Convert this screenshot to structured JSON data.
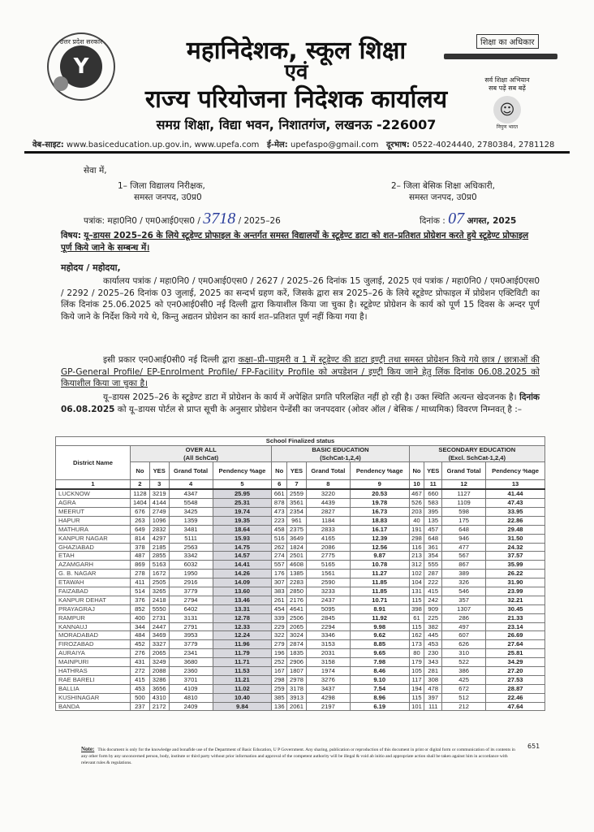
{
  "header": {
    "seal_text": "उत्तर प्रदेश सरकार",
    "title_line1": "महानिदेशक, स्कूल शिक्षा",
    "title_line2": "एवं",
    "title_line3": "राज्य परियोजना निदेशक कार्यालय",
    "address": "समग्र शिक्षा, विद्या भवन, निशातगंज, लखनऊ -226007",
    "rte_label": "शिक्षा का अधिकार",
    "ssa_line1": "सर्व शिक्षा अभियान",
    "ssa_line2": "सब पढ़ें सब बढ़ें",
    "nipun_label": "निपुण भारत",
    "website_label": "वेब-साइट:",
    "website": "www.basiceducation.up.gov.in, www.upefa.com",
    "email_label": "ई-मेल:",
    "email": "upefaspo@gmail.com",
    "phone_label": "दूरभाष:",
    "phone": "0522-4024440, 2780384, 2781128"
  },
  "letter": {
    "to": "सेवा में,",
    "recipient1_line1": "1– जिला विद्यालय निरीक्षक,",
    "recipient1_line2": "समस्त जनपद, उ0प्र0",
    "recipient2_line1": "2– जिला बेसिक शिक्षा अधिकारी,",
    "recipient2_line2": "समस्त जनपद, उ0प्र0",
    "ref_prefix": "पत्रांक: महा0नि0 / एम0आई0एस0 /",
    "ref_number_handwritten": "3718",
    "ref_suffix": "/ 2025–26",
    "date_label": "दिनांक :",
    "date_handwritten": "07",
    "date_suffix": "अगस्त, 2025",
    "subject_label": "विषय:",
    "subject": "यू–डायस 2025–26 के लिये स्टूडेण्ट प्रोफाइल के अन्तर्गत समस्त विद्यालयों के स्टूडेण्ट डाटा को शत–प्रतिशत प्रोग्रेशन करते हुये स्टूडेण्ट प्रोफाइल पूर्ण किये जाने के सम्बन्ध में।",
    "salutation": "महोदय / महोदया,",
    "para1": "कार्यालय पत्रांक / महा0नि0 / एम0आई0एस0 / 2627 / 2025–26 दिनांक 15 जुलाई, 2025 एवं पत्रांक / महा0नि0 / एम0आई0एस0 / 2292 / 2025–26 दिनांक 03 जुलाई, 2025 का सन्दर्भ ग्रहण करें, जिसके द्वारा सत्र 2025–26 के लिये स्टूडेण्ट प्रोफाइल में प्रोग्रेशन एक्टिविटी का लिंक दिनांक 25.06.2025 को एन0आई0सी0 नई दिल्ली द्वारा कियाशील किया जा चुका है। स्टूडेण्ट प्रोग्रेशन के कार्य को पूर्ण 15 दिवस के अन्दर पूर्ण किये जाने के निर्देश किये गये थे, किन्तु अद्यतन प्रोग्रेशन का कार्य शत–प्रतिशत पूर्ण नहीं किया गया है।",
    "para2_plain": "इसी प्रकार एन0आई0सी0 नई दिल्ली द्वारा ",
    "para2_underlined": "कक्षा–प्री–पाइमरी व 1 में स्टूडेण्ट की डाटा इण्ट्री तथा समस्त प्रोग्रेशन किये गये छात्र / छात्राओं की GP-General Profile/ EP-Enrolment Profile/ FP-Facility Profile को अपडेशन / इण्ट्री किय जाने हेतु लिंक दिनांक 06.08.2025 को कियाशील किया जा चुका है।",
    "para3_a": "यू–डायस 2025–26 के स्टूडेण्ट डाटा में प्रोग्रेशन के कार्य में अपेक्षित प्रगति परिलक्षित नहीं हो रही है। उक्त स्थिति अत्यन्त खेदजनक है। ",
    "para3_bold": "दिनांक 06.08.2025",
    "para3_b": " को यू–डायस पोर्टल से प्राप्त सूची के अनुसार प्रोग्रेशन पेन्डेंसी का जनपदवार (ओवर ऑल / बेसिक / माध्यमिक) विवरण निम्नवत् है :–"
  },
  "table": {
    "title": "School Finalized status",
    "district_header": "District Name",
    "groups": [
      {
        "line1": "OVER ALL",
        "line2": "(All SchCat)"
      },
      {
        "line1": "BASIC EDUCATION",
        "line2": "(SchCat-1,2,4)"
      },
      {
        "line1": "SECONDARY EDUCATION",
        "line2": "(Excl. SchCat-1,2,4)"
      }
    ],
    "sub_headers": [
      "No",
      "YES",
      "Grand Total",
      "Pendency %age"
    ],
    "col_numbers": [
      "1",
      "2",
      "3",
      "4",
      "5",
      "6",
      "7",
      "8",
      "9",
      "10",
      "11",
      "12",
      "13"
    ],
    "rows": [
      [
        "LUCKNOW",
        "1128",
        "3219",
        "4347",
        "25.95",
        "661",
        "2559",
        "3220",
        "20.53",
        "467",
        "660",
        "1127",
        "41.44"
      ],
      [
        "AGRA",
        "1404",
        "4144",
        "5548",
        "25.31",
        "878",
        "3561",
        "4439",
        "19.78",
        "526",
        "583",
        "1109",
        "47.43"
      ],
      [
        "MEERUT",
        "676",
        "2749",
        "3425",
        "19.74",
        "473",
        "2354",
        "2827",
        "16.73",
        "203",
        "395",
        "598",
        "33.95"
      ],
      [
        "HAPUR",
        "263",
        "1096",
        "1359",
        "19.35",
        "223",
        "961",
        "1184",
        "18.83",
        "40",
        "135",
        "175",
        "22.86"
      ],
      [
        "MATHURA",
        "649",
        "2832",
        "3481",
        "18.64",
        "458",
        "2375",
        "2833",
        "16.17",
        "191",
        "457",
        "648",
        "29.48"
      ],
      [
        "KANPUR NAGAR",
        "814",
        "4297",
        "5111",
        "15.93",
        "516",
        "3649",
        "4165",
        "12.39",
        "298",
        "648",
        "946",
        "31.50"
      ],
      [
        "GHAZIABAD",
        "378",
        "2185",
        "2563",
        "14.75",
        "262",
        "1824",
        "2086",
        "12.56",
        "116",
        "361",
        "477",
        "24.32"
      ],
      [
        "ETAH",
        "487",
        "2855",
        "3342",
        "14.57",
        "274",
        "2501",
        "2775",
        "9.87",
        "213",
        "354",
        "567",
        "37.57"
      ],
      [
        "AZAMGARH",
        "869",
        "5163",
        "6032",
        "14.41",
        "557",
        "4608",
        "5165",
        "10.78",
        "312",
        "555",
        "867",
        "35.99"
      ],
      [
        "G. B. NAGAR",
        "278",
        "1672",
        "1950",
        "14.26",
        "176",
        "1385",
        "1561",
        "11.27",
        "102",
        "287",
        "389",
        "26.22"
      ],
      [
        "ETAWAH",
        "411",
        "2505",
        "2916",
        "14.09",
        "307",
        "2283",
        "2590",
        "11.85",
        "104",
        "222",
        "326",
        "31.90"
      ],
      [
        "FAIZABAD",
        "514",
        "3265",
        "3779",
        "13.60",
        "383",
        "2850",
        "3233",
        "11.85",
        "131",
        "415",
        "546",
        "23.99"
      ],
      [
        "KANPUR DEHAT",
        "376",
        "2418",
        "2794",
        "13.46",
        "261",
        "2176",
        "2437",
        "10.71",
        "115",
        "242",
        "357",
        "32.21"
      ],
      [
        "PRAYAGRAJ",
        "852",
        "5550",
        "6402",
        "13.31",
        "454",
        "4641",
        "5095",
        "8.91",
        "398",
        "909",
        "1307",
        "30.45"
      ],
      [
        "RAMPUR",
        "400",
        "2731",
        "3131",
        "12.78",
        "339",
        "2506",
        "2845",
        "11.92",
        "61",
        "225",
        "286",
        "21.33"
      ],
      [
        "KANNAUJ",
        "344",
        "2447",
        "2791",
        "12.33",
        "229",
        "2065",
        "2294",
        "9.98",
        "115",
        "382",
        "497",
        "23.14"
      ],
      [
        "MORADABAD",
        "484",
        "3469",
        "3953",
        "12.24",
        "322",
        "3024",
        "3346",
        "9.62",
        "162",
        "445",
        "607",
        "26.69"
      ],
      [
        "FIROZABAD",
        "452",
        "3327",
        "3779",
        "11.96",
        "279",
        "2874",
        "3153",
        "8.85",
        "173",
        "453",
        "626",
        "27.64"
      ],
      [
        "AURAIYA",
        "276",
        "2065",
        "2341",
        "11.79",
        "196",
        "1835",
        "2031",
        "9.65",
        "80",
        "230",
        "310",
        "25.81"
      ],
      [
        "MAINPURI",
        "431",
        "3249",
        "3680",
        "11.71",
        "252",
        "2906",
        "3158",
        "7.98",
        "179",
        "343",
        "522",
        "34.29"
      ],
      [
        "HATHRAS",
        "272",
        "2088",
        "2360",
        "11.53",
        "167",
        "1807",
        "1974",
        "8.46",
        "105",
        "281",
        "386",
        "27.20"
      ],
      [
        "RAE BARELI",
        "415",
        "3286",
        "3701",
        "11.21",
        "298",
        "2978",
        "3276",
        "9.10",
        "117",
        "308",
        "425",
        "27.53"
      ],
      [
        "BALLIA",
        "453",
        "3656",
        "4109",
        "11.02",
        "259",
        "3178",
        "3437",
        "7.54",
        "194",
        "478",
        "672",
        "28.87"
      ],
      [
        "KUSHINAGAR",
        "500",
        "4310",
        "4810",
        "10.40",
        "385",
        "3913",
        "4298",
        "8.96",
        "115",
        "397",
        "512",
        "22.46"
      ],
      [
        "BANDA",
        "237",
        "2172",
        "2409",
        "9.84",
        "136",
        "2061",
        "2197",
        "6.19",
        "101",
        "111",
        "212",
        "47.64"
      ]
    ]
  },
  "footer": {
    "note_label": "Note:",
    "note_text": "This document is only for the knowledge and bonafide use of the Department of Basic Education, U P Government. Any sharing, publication or reproduction of this document in print or digital form or communication of its contents in any other form by any unconcerned person, body, institute or third party without prior information and approval of the competent authority will be illegal & void ab initio and appropriate action shall be taken against him in accordance with relevant rules & regulations.",
    "page_number": "651"
  }
}
